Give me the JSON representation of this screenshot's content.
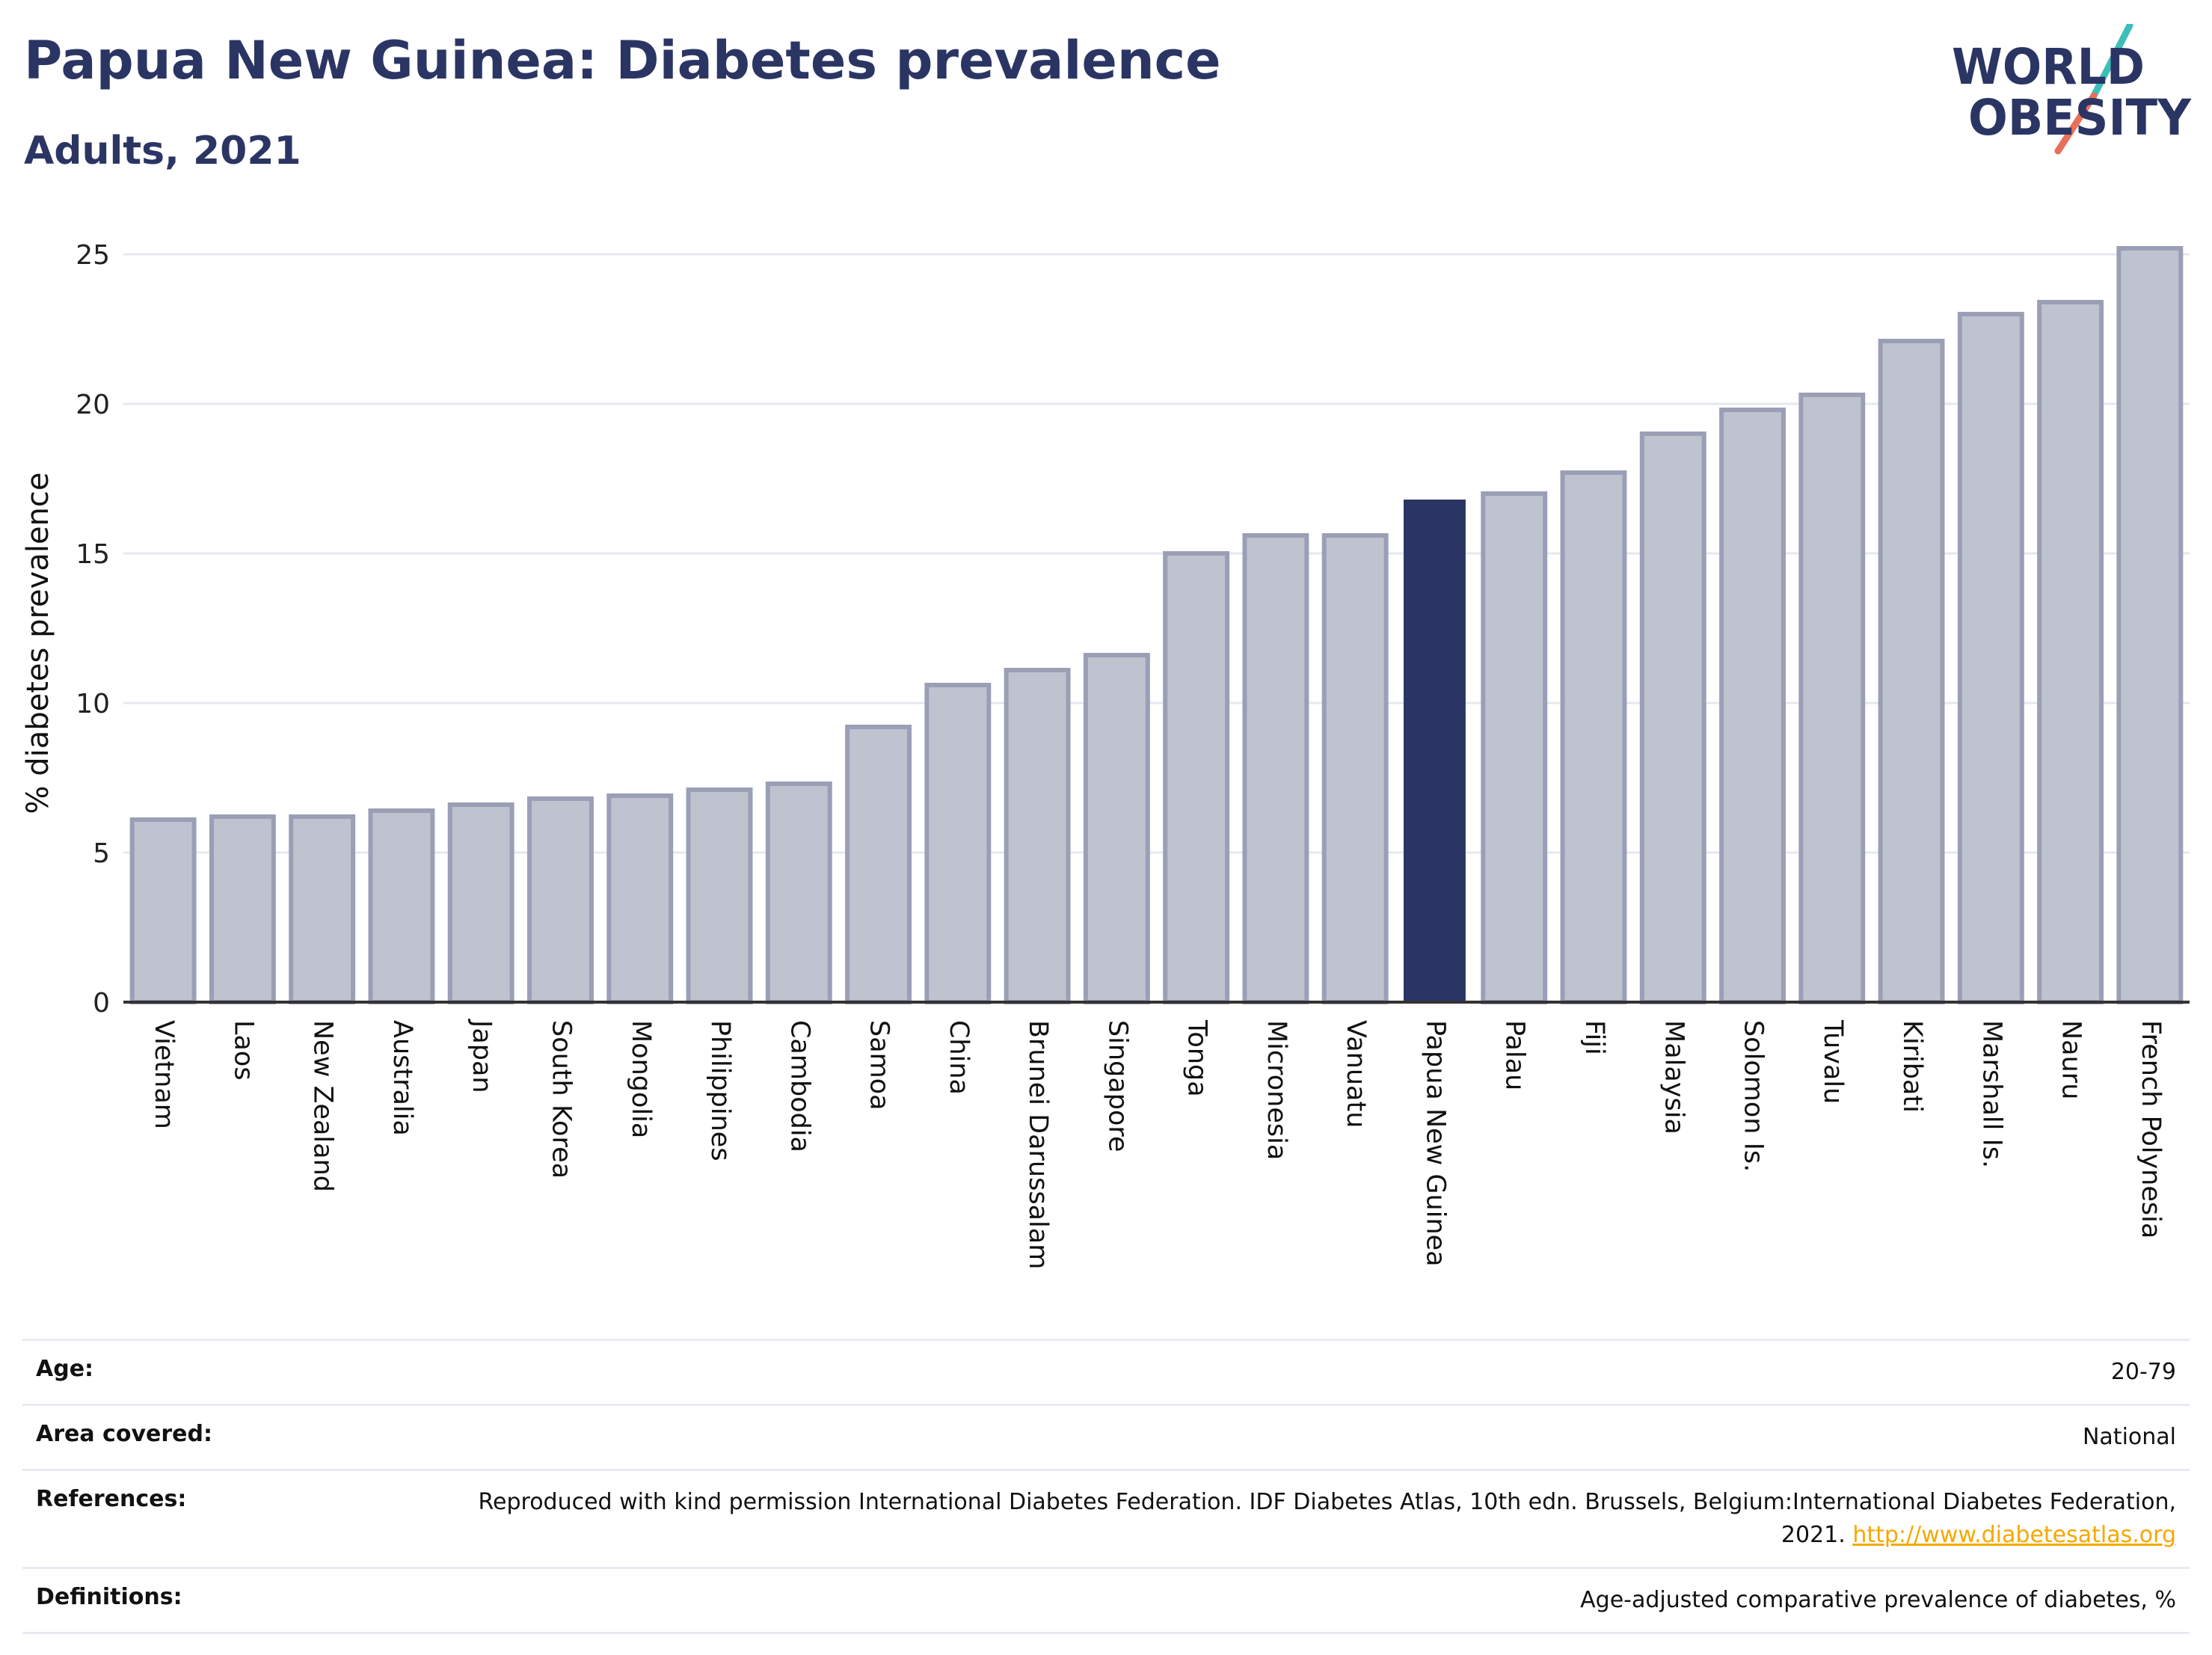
{
  "header": {
    "title": "Papua New Guinea: Diabetes prevalence",
    "subtitle": "Adults, 2021"
  },
  "logo": {
    "line1": "WORLD",
    "line2": "OBESITY",
    "colors": {
      "text": "#2b3564",
      "slash_top": "#3dbfb8",
      "slash_bottom": "#e8705b"
    }
  },
  "chart_data": {
    "type": "bar",
    "title": "Papua New Guinea: Diabetes prevalence",
    "subtitle": "Adults, 2021",
    "xlabel": "",
    "ylabel": "% diabetes prevalence",
    "ylim": [
      0,
      26
    ],
    "yticks": [
      0,
      5,
      10,
      15,
      20,
      25
    ],
    "grid": true,
    "highlight": "Papua New Guinea",
    "colors": {
      "bar": "#bfc2cf",
      "bar_border": "#9a9fb6",
      "highlight": "#2b3564",
      "grid": "#e6e8ef",
      "axis": "#333333"
    },
    "categories": [
      "Vietnam",
      "Laos",
      "New Zealand",
      "Australia",
      "Japan",
      "South Korea",
      "Mongolia",
      "Philippines",
      "Cambodia",
      "Samoa",
      "China",
      "Brunei Darussalam",
      "Singapore",
      "Tonga",
      "Micronesia",
      "Vanuatu",
      "Papua New Guinea",
      "Palau",
      "Fiji",
      "Malaysia",
      "Solomon Is.",
      "Tuvalu",
      "Kiribati",
      "Marshall Is.",
      "Nauru",
      "French Polynesia"
    ],
    "values": [
      6.1,
      6.2,
      6.2,
      6.4,
      6.6,
      6.8,
      6.9,
      7.1,
      7.3,
      9.2,
      10.6,
      11.1,
      11.6,
      15.0,
      15.6,
      15.6,
      16.8,
      17.0,
      17.7,
      19.0,
      19.8,
      20.3,
      22.1,
      23.0,
      23.4,
      25.2
    ]
  },
  "info": {
    "rows": [
      {
        "label": "Age:",
        "value": "20-79"
      },
      {
        "label": "Area covered:",
        "value": "National"
      },
      {
        "label": "References:",
        "value": "Reproduced with kind permission International Diabetes Federation.  IDF Diabetes Atlas, 10th edn. Brussels, Belgium:International Diabetes Federation, 2021. ",
        "link": "http://www.diabetesatlas.org"
      },
      {
        "label": "Definitions:",
        "value": "Age-adjusted comparative prevalence of diabetes, %"
      }
    ]
  }
}
